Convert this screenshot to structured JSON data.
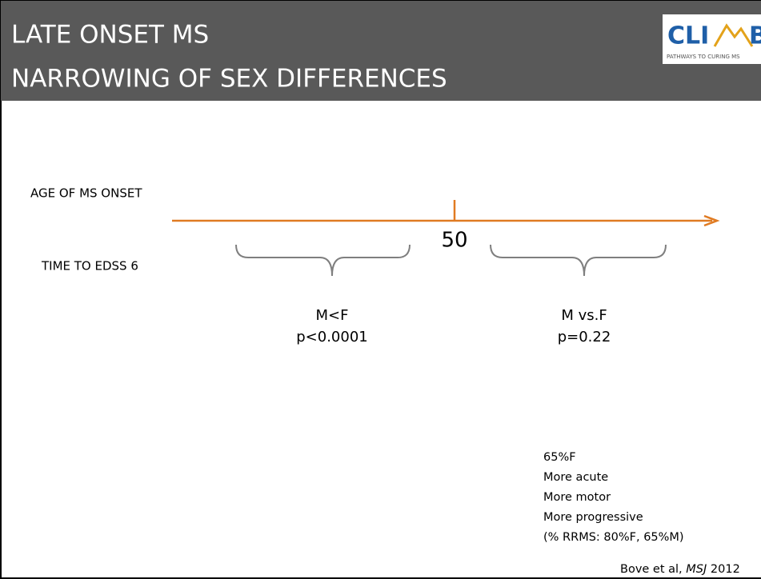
{
  "header": {
    "title_lines": [
      "LATE ONSET MS",
      "NARROWING OF SEX DIFFERENCES"
    ]
  },
  "logo": {
    "left": "CLI",
    "right": "B",
    "tagline": "PATHWAYS TO CURING MS"
  },
  "timeline": {
    "row_labels": [
      "AGE OF MS ONSET",
      "TIME TO EDSS 6"
    ],
    "marker": "50",
    "groups": [
      {
        "lines": [
          "M<F",
          "p<0.0001"
        ]
      },
      {
        "lines": [
          "M vs.F",
          "p=0.22"
        ]
      }
    ]
  },
  "notes": [
    "65%F",
    "More acute",
    "More motor",
    "More progressive",
    "(% RRMS: 80%F, 65%M)"
  ],
  "citation": {
    "authors": "Bove et al, ",
    "journal": "MSJ",
    "year": " 2012"
  }
}
